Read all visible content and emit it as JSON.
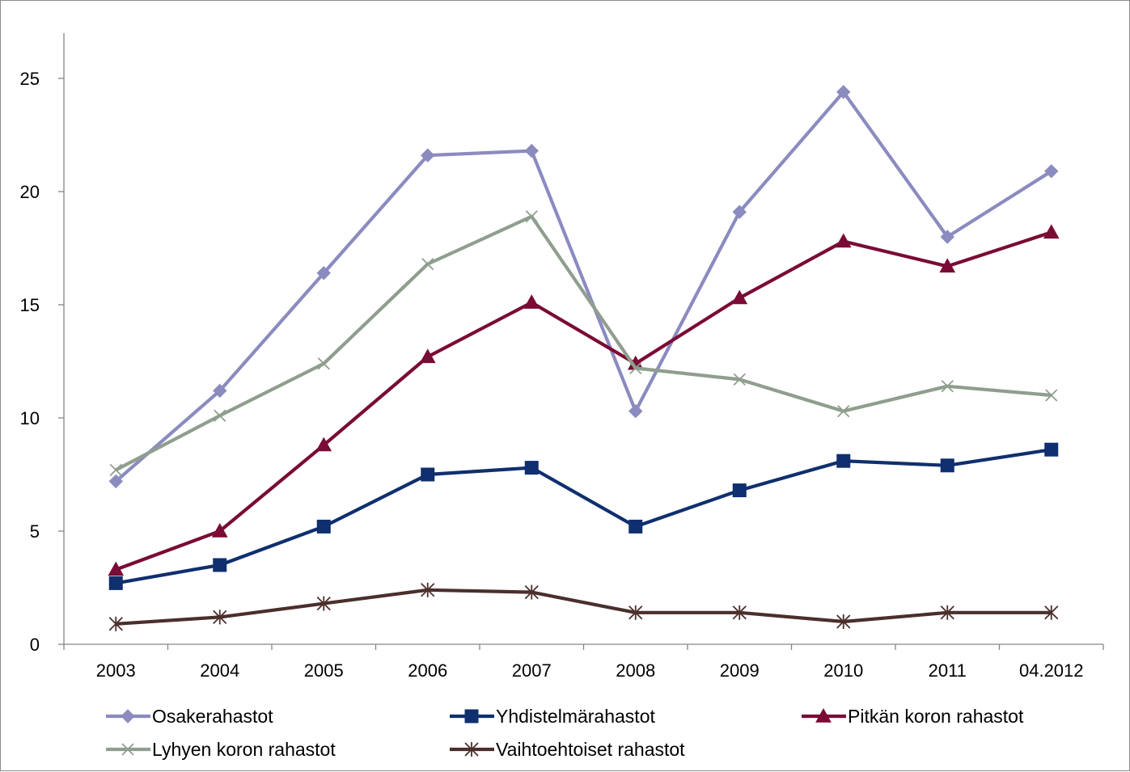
{
  "chart_data": {
    "type": "line",
    "title": "",
    "xlabel": "",
    "ylabel": "",
    "categories": [
      "2003",
      "2004",
      "2005",
      "2006",
      "2007",
      "2008",
      "2009",
      "2010",
      "2011",
      "04.2012"
    ],
    "ylim": [
      0,
      27
    ],
    "yticks": [
      0,
      5,
      10,
      15,
      20,
      25
    ],
    "grid": false,
    "legend_position": "bottom",
    "series": [
      {
        "name": "Osakerahastot",
        "color": "#8b8bc0",
        "marker": "diamond",
        "values": [
          7.2,
          11.2,
          16.4,
          21.6,
          21.8,
          10.3,
          19.1,
          24.4,
          18.0,
          20.9
        ]
      },
      {
        "name": "Yhdistelmärahastot",
        "color": "#0f2f6e",
        "marker": "square",
        "values": [
          2.7,
          3.5,
          5.2,
          7.5,
          7.8,
          5.2,
          6.8,
          8.1,
          7.9,
          8.6
        ]
      },
      {
        "name": "Pitkän koron rahastot",
        "color": "#7a0b35",
        "marker": "triangle",
        "values": [
          3.3,
          5.0,
          8.8,
          12.7,
          15.1,
          12.4,
          15.3,
          17.8,
          16.7,
          18.2
        ]
      },
      {
        "name": "Lyhyen koron rahastot",
        "color": "#8f9e8e",
        "marker": "x",
        "values": [
          7.7,
          10.1,
          12.4,
          16.8,
          18.9,
          12.2,
          11.7,
          10.3,
          11.4,
          11.0
        ]
      },
      {
        "name": "Vaihtoehtoiset rahastot",
        "color": "#4a2f2c",
        "marker": "star",
        "values": [
          0.9,
          1.2,
          1.8,
          2.4,
          2.3,
          1.4,
          1.4,
          1.0,
          1.4,
          1.4
        ]
      }
    ]
  }
}
